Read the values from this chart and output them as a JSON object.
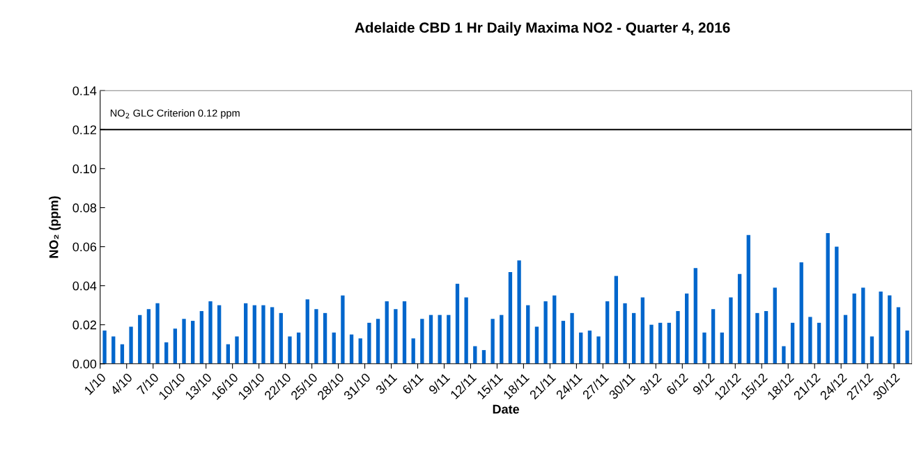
{
  "chart_data": {
    "type": "bar",
    "title": "Adelaide CBD 1 Hr Daily Maxima NO2 - Quarter 4, 2016",
    "xlabel": "Date",
    "ylabel": "NO₂ (ppm)",
    "categories": [
      "1/10",
      null,
      null,
      "4/10",
      null,
      null,
      "7/10",
      null,
      null,
      "10/10",
      null,
      null,
      "13/10",
      null,
      null,
      "16/10",
      null,
      null,
      "19/10",
      null,
      null,
      "22/10",
      null,
      null,
      "25/10",
      null,
      null,
      "28/10",
      null,
      null,
      "31/10",
      null,
      null,
      "3/11",
      null,
      null,
      "6/11",
      null,
      null,
      "9/11",
      null,
      null,
      "12/11",
      null,
      null,
      "15/11",
      null,
      null,
      "18/11",
      null,
      null,
      "21/11",
      null,
      null,
      "24/11",
      null,
      null,
      "27/11",
      null,
      null,
      "30/11",
      null,
      null,
      "3/12",
      null,
      null,
      "6/12",
      null,
      null,
      "9/12",
      null,
      null,
      "12/12",
      null,
      null,
      "15/12",
      null,
      null,
      "18/12",
      null,
      null,
      "21/12",
      null,
      null,
      "24/12",
      null,
      null,
      "27/12",
      null,
      null,
      "30/12",
      null
    ],
    "values": [
      0.017,
      0.014,
      0.01,
      0.019,
      0.025,
      0.028,
      0.031,
      0.011,
      0.018,
      0.023,
      0.022,
      0.027,
      0.032,
      0.03,
      0.01,
      0.014,
      0.031,
      0.03,
      0.03,
      0.029,
      0.026,
      0.014,
      0.016,
      0.033,
      0.028,
      0.026,
      0.016,
      0.035,
      0.015,
      0.013,
      0.021,
      0.023,
      0.032,
      0.028,
      0.032,
      0.013,
      0.023,
      0.025,
      0.025,
      0.025,
      0.041,
      0.034,
      0.009,
      0.007,
      0.023,
      0.025,
      0.047,
      0.053,
      0.03,
      0.019,
      0.032,
      0.035,
      0.022,
      0.026,
      0.016,
      0.017,
      0.014,
      0.032,
      0.045,
      0.031,
      0.026,
      0.034,
      0.02,
      0.021,
      0.021,
      0.027,
      0.036,
      0.049,
      0.016,
      0.028,
      0.016,
      0.034,
      0.046,
      0.066,
      0.026,
      0.027,
      0.039,
      0.009,
      0.021,
      0.052,
      0.024,
      0.021,
      0.067,
      0.06,
      0.025,
      0.036,
      0.039,
      0.014,
      0.037,
      0.035,
      0.029,
      0.017
    ],
    "color": "#0066cc",
    "ylim": [
      0,
      0.14
    ],
    "yticks": [
      {
        "value": 0,
        "label": "0.00"
      },
      {
        "value": 0.02,
        "label": "0.02"
      },
      {
        "value": 0.04,
        "label": "0.04"
      },
      {
        "value": 0.06,
        "label": "0.06"
      },
      {
        "value": 0.08,
        "label": "0.08"
      },
      {
        "value": 0.1,
        "label": "0.10"
      },
      {
        "value": 0.12,
        "label": "0.12"
      },
      {
        "value": 0.14,
        "label": "0.14"
      }
    ],
    "ref_lines": [
      {
        "axis": "y",
        "value": 0.12,
        "label": "NO$_{2}$ GLC Criterion 0.12 ppm",
        "color": "#000000"
      }
    ],
    "grid": false
  }
}
